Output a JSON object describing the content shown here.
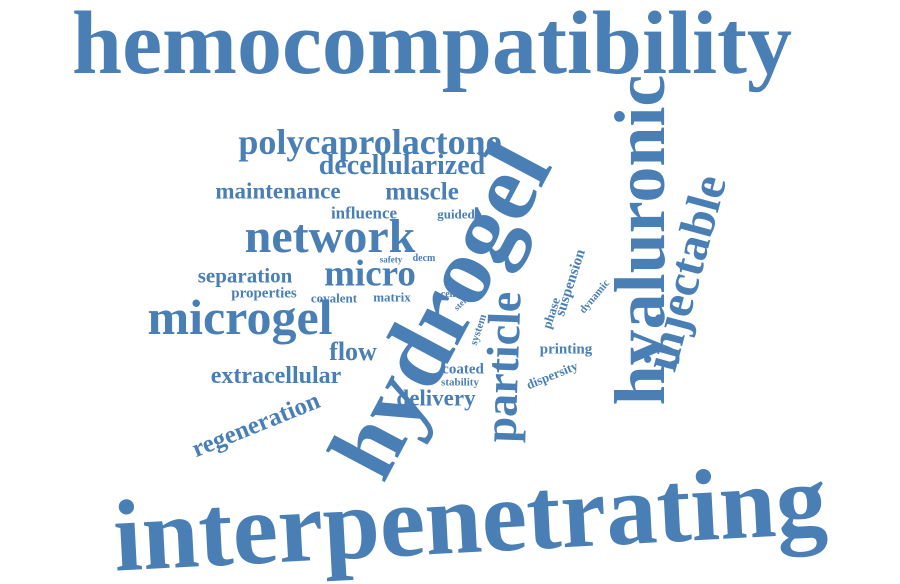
{
  "word_color": "#4a7fb5",
  "background": "#ffffff",
  "words": {
    "hemocompatibility": "hemocompatibility",
    "interpenetrating": "interpenetrating",
    "hydrogel": "hydrogel",
    "hyaluronic": "hyaluronic",
    "injectable": "injectable",
    "particle": "particle",
    "polycaprolactone": "polycaprolactone",
    "decellularized": "decellularized",
    "maintenance": "maintenance",
    "muscle": "muscle",
    "influence": "influence",
    "guided": "guided",
    "network": "network",
    "safety": "safety",
    "decm": "decm",
    "separation": "separation",
    "micro": "micro",
    "properties": "properties",
    "covalent": "covalent",
    "matrix": "matrix",
    "cell": "cell",
    "microgel": "microgel",
    "flow": "flow",
    "extracellular": "extracellular",
    "regeneration": "regeneration",
    "delivery": "delivery",
    "coated": "coated",
    "stability": "stability",
    "printing": "printing",
    "dispersity": "dispersity",
    "suspension": "suspension",
    "dynamic": "dynamic",
    "phase": "phase",
    "system": "system",
    "stem": "stem"
  }
}
